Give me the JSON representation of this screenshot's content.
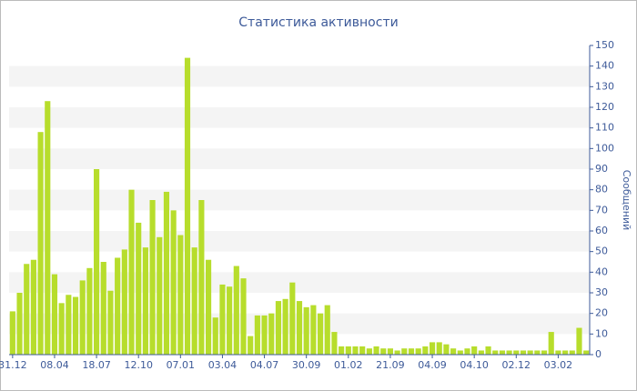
{
  "chart_data": {
    "type": "bar",
    "title": "Статистика активности",
    "y_label": "Сообщений",
    "categories": [
      "31.12",
      null,
      null,
      null,
      null,
      null,
      "08.04",
      null,
      null,
      null,
      null,
      null,
      "18.07",
      null,
      null,
      null,
      null,
      null,
      "12.10",
      null,
      null,
      null,
      null,
      null,
      "07.01",
      null,
      null,
      null,
      null,
      null,
      "03.04",
      null,
      null,
      null,
      null,
      null,
      "04.07",
      null,
      null,
      null,
      null,
      null,
      "30.09",
      null,
      null,
      null,
      null,
      null,
      "01.02",
      null,
      null,
      null,
      null,
      null,
      "21.09",
      null,
      null,
      null,
      null,
      null,
      "04.09",
      null,
      null,
      null,
      null,
      null,
      "04.10",
      null,
      null,
      null,
      null,
      null,
      "02.12",
      null,
      null,
      null,
      null,
      null,
      "03.02",
      null,
      null,
      null,
      null
    ],
    "values": [
      21,
      30,
      44,
      46,
      108,
      123,
      39,
      25,
      29,
      28,
      36,
      42,
      90,
      45,
      31,
      47,
      51,
      80,
      64,
      52,
      75,
      57,
      79,
      70,
      58,
      144,
      52,
      75,
      46,
      18,
      34,
      33,
      43,
      37,
      9,
      19,
      19,
      20,
      26,
      27,
      35,
      26,
      23,
      24,
      20,
      24,
      11,
      4,
      4,
      4,
      4,
      3,
      4,
      3,
      3,
      2,
      3,
      3,
      3,
      4,
      6,
      6,
      5,
      3,
      2,
      3,
      4,
      2,
      4,
      2,
      2,
      2,
      2,
      2,
      2,
      2,
      2,
      11,
      2,
      2,
      2,
      13,
      2
    ],
    "color": "#b7dd2c",
    "ylim": [
      0,
      150
    ],
    "yticks": [
      0,
      10,
      20,
      30,
      40,
      50,
      60,
      70,
      80,
      90,
      100,
      110,
      120,
      130,
      140,
      150
    ],
    "grid": true,
    "y_axis_side": "right"
  }
}
